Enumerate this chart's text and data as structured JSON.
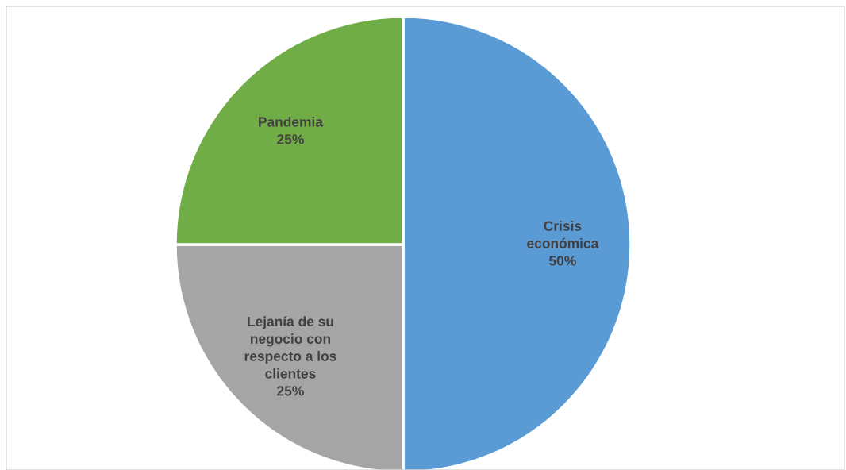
{
  "chart_data": {
    "type": "pie",
    "categories": [
      "Crisis económica",
      "Lejanía de su negocio con respecto a los clientes",
      "Pandemia"
    ],
    "values": [
      50,
      25,
      25
    ],
    "colors": [
      "#5b9bd5",
      "#a5a5a5",
      "#70ad47"
    ],
    "value_labels": [
      "50%",
      "25%",
      "25%"
    ],
    "legend": false
  }
}
